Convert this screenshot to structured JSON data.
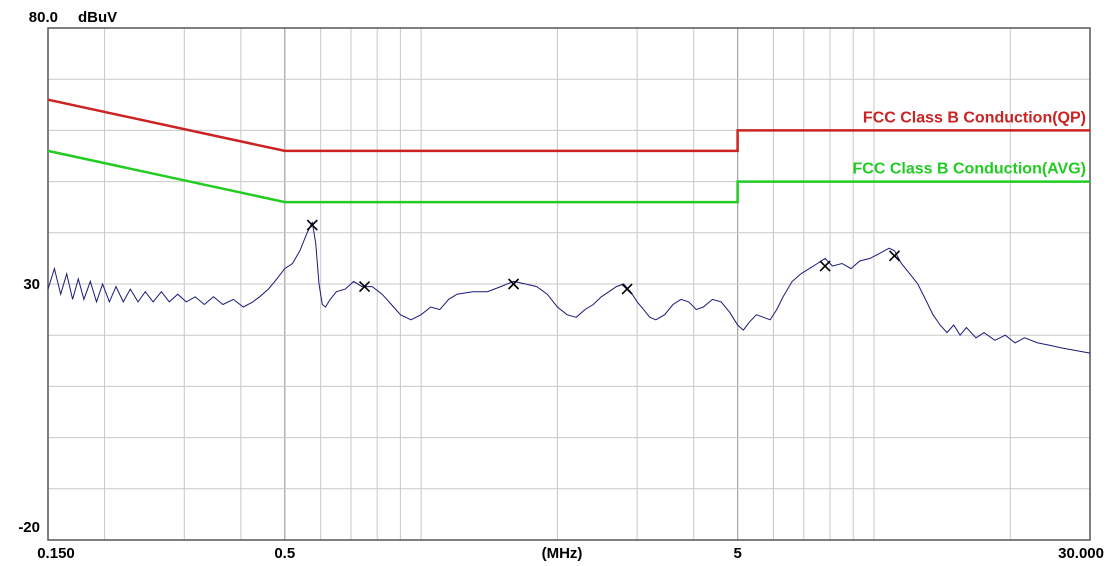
{
  "chart_data": {
    "type": "line",
    "x_scale": "log",
    "xlim": [
      0.15,
      30
    ],
    "ylim": [
      -20,
      80
    ],
    "y_unit": "dBuV",
    "x_unit": "(MHz)",
    "grid": true,
    "y_tick_labels": [
      {
        "value": 80,
        "text": "80.0"
      },
      {
        "value": 30,
        "text": "30"
      },
      {
        "value": -20,
        "text": "-20"
      }
    ],
    "x_tick_labels": [
      {
        "value": 0.15,
        "text": "0.150"
      },
      {
        "value": 0.5,
        "text": "0.5"
      },
      {
        "value": 5,
        "text": "5"
      },
      {
        "value": 30,
        "text": "30.000"
      }
    ],
    "limit_lines": [
      {
        "name": "FCC Class B Conduction(QP)",
        "color": "#cc2222",
        "points": [
          [
            0.15,
            66
          ],
          [
            0.5,
            56
          ],
          [
            5,
            56
          ],
          [
            5,
            60
          ],
          [
            30,
            60
          ]
        ]
      },
      {
        "name": "FCC Class B Conduction(AVG)",
        "color": "#22cc22",
        "points": [
          [
            0.15,
            56
          ],
          [
            0.5,
            46
          ],
          [
            5,
            46
          ],
          [
            5,
            50
          ],
          [
            30,
            50
          ]
        ]
      }
    ],
    "series": [
      {
        "color": "#1a1a7a",
        "points": [
          [
            0.15,
            29
          ],
          [
            0.155,
            33
          ],
          [
            0.16,
            28
          ],
          [
            0.165,
            32
          ],
          [
            0.17,
            27
          ],
          [
            0.175,
            31
          ],
          [
            0.18,
            27
          ],
          [
            0.186,
            30.5
          ],
          [
            0.192,
            26.5
          ],
          [
            0.198,
            30
          ],
          [
            0.205,
            26.5
          ],
          [
            0.212,
            29.5
          ],
          [
            0.22,
            26.5
          ],
          [
            0.228,
            29
          ],
          [
            0.237,
            26.5
          ],
          [
            0.246,
            28.5
          ],
          [
            0.256,
            26.5
          ],
          [
            0.267,
            28.5
          ],
          [
            0.278,
            26.5
          ],
          [
            0.29,
            28
          ],
          [
            0.303,
            26.5
          ],
          [
            0.317,
            27.5
          ],
          [
            0.332,
            26
          ],
          [
            0.348,
            27.5
          ],
          [
            0.365,
            26
          ],
          [
            0.385,
            27
          ],
          [
            0.405,
            25.5
          ],
          [
            0.425,
            26.5
          ],
          [
            0.44,
            27.5
          ],
          [
            0.46,
            29
          ],
          [
            0.48,
            31
          ],
          [
            0.5,
            33
          ],
          [
            0.52,
            34
          ],
          [
            0.54,
            36.5
          ],
          [
            0.56,
            40
          ],
          [
            0.575,
            42
          ],
          [
            0.585,
            38
          ],
          [
            0.595,
            30
          ],
          [
            0.605,
            26
          ],
          [
            0.615,
            25.5
          ],
          [
            0.63,
            27
          ],
          [
            0.65,
            28.5
          ],
          [
            0.68,
            29
          ],
          [
            0.71,
            30.5
          ],
          [
            0.74,
            29.5
          ],
          [
            0.78,
            29.5
          ],
          [
            0.82,
            28
          ],
          [
            0.86,
            26
          ],
          [
            0.9,
            24
          ],
          [
            0.95,
            23
          ],
          [
            1.0,
            24
          ],
          [
            1.05,
            25.5
          ],
          [
            1.1,
            25
          ],
          [
            1.15,
            27
          ],
          [
            1.2,
            28
          ],
          [
            1.3,
            28.5
          ],
          [
            1.4,
            28.5
          ],
          [
            1.5,
            29.5
          ],
          [
            1.6,
            30.5
          ],
          [
            1.7,
            30
          ],
          [
            1.8,
            29.5
          ],
          [
            1.9,
            28
          ],
          [
            2.0,
            25.5
          ],
          [
            2.1,
            24
          ],
          [
            2.2,
            23.5
          ],
          [
            2.3,
            25
          ],
          [
            2.4,
            26
          ],
          [
            2.5,
            27.5
          ],
          [
            2.6,
            28.5
          ],
          [
            2.7,
            29.5
          ],
          [
            2.8,
            30
          ],
          [
            2.9,
            28.5
          ],
          [
            3.0,
            26.5
          ],
          [
            3.1,
            25
          ],
          [
            3.2,
            23.5
          ],
          [
            3.3,
            23
          ],
          [
            3.45,
            24
          ],
          [
            3.6,
            26
          ],
          [
            3.75,
            27
          ],
          [
            3.9,
            26.5
          ],
          [
            4.05,
            25
          ],
          [
            4.2,
            25.5
          ],
          [
            4.4,
            27
          ],
          [
            4.6,
            26.5
          ],
          [
            4.8,
            24.5
          ],
          [
            5.0,
            22
          ],
          [
            5.15,
            21
          ],
          [
            5.3,
            22.5
          ],
          [
            5.5,
            24
          ],
          [
            5.7,
            23.5
          ],
          [
            5.9,
            23
          ],
          [
            6.1,
            25
          ],
          [
            6.3,
            27.5
          ],
          [
            6.6,
            30.5
          ],
          [
            6.9,
            32
          ],
          [
            7.2,
            33
          ],
          [
            7.5,
            34
          ],
          [
            7.8,
            35
          ],
          [
            8.1,
            33.5
          ],
          [
            8.5,
            34
          ],
          [
            8.9,
            33
          ],
          [
            9.3,
            34.5
          ],
          [
            9.8,
            35
          ],
          [
            10.3,
            36
          ],
          [
            10.8,
            37
          ],
          [
            11.1,
            36.5
          ],
          [
            11.5,
            34
          ],
          [
            12,
            32
          ],
          [
            12.5,
            30
          ],
          [
            13,
            27
          ],
          [
            13.5,
            24
          ],
          [
            14,
            22
          ],
          [
            14.5,
            20.5
          ],
          [
            15,
            22
          ],
          [
            15.5,
            20
          ],
          [
            16,
            21.5
          ],
          [
            16.8,
            19.5
          ],
          [
            17.5,
            20.5
          ],
          [
            18.5,
            19
          ],
          [
            19.5,
            20
          ],
          [
            20.5,
            18.5
          ],
          [
            21.5,
            19.5
          ],
          [
            23,
            18.5
          ],
          [
            24.5,
            18
          ],
          [
            26,
            17.5
          ],
          [
            28,
            17
          ],
          [
            30,
            16.5
          ]
        ]
      }
    ],
    "markers": [
      [
        0.575,
        41.5
      ],
      [
        0.75,
        29.5
      ],
      [
        1.6,
        30
      ],
      [
        2.85,
        29
      ],
      [
        7.8,
        33.5
      ],
      [
        11.1,
        35.5
      ]
    ]
  }
}
